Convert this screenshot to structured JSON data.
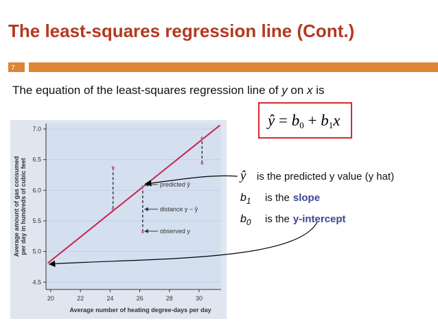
{
  "header": {
    "title": "The least-squares regression line (Cont.)",
    "slide_number": "7"
  },
  "sentence": [
    {
      "text": "The equation of the least-squares regression line of "
    },
    {
      "text": "y",
      "italic": true
    },
    {
      "text": " on "
    },
    {
      "text": "x",
      "italic": true
    },
    {
      "text": " is"
    }
  ],
  "equation": [
    {
      "text": "ŷ"
    },
    {
      "text": " = "
    },
    {
      "text": "b"
    },
    {
      "text": "0",
      "sub": true
    },
    {
      "text": " + "
    },
    {
      "text": "b"
    },
    {
      "text": "1",
      "sub": true
    },
    {
      "text": "x"
    }
  ],
  "legend": [
    {
      "symbol": "ŷ",
      "text": "is the predicted y value (y hat)"
    },
    {
      "symbol": "b",
      "sub": "1",
      "text": "is the",
      "highlight": "slope"
    },
    {
      "symbol": "b",
      "sub": "0",
      "text": "is the",
      "highlight": "y-intercept"
    }
  ],
  "figure": {
    "ylabel": [
      "Average amount of gas consumed",
      "per day in hundreds of cubic feet"
    ],
    "xlabel": "Average number of heating degree-days per day",
    "xlim": [
      19.68,
      31.48
    ],
    "ylim": [
      4.38,
      7.09
    ],
    "xticks": [
      20,
      22,
      24,
      26,
      28,
      30
    ],
    "yticks": [
      4.5,
      {
        "value": 5,
        "label": "5.0"
      },
      5.5,
      {
        "value": 6,
        "label": "6.0"
      },
      6.5,
      {
        "value": 7,
        "label": "7.0"
      }
    ],
    "line_x": [
      19.8,
      31.4
    ],
    "line_y": [
      4.81,
      7.06
    ],
    "line_color": "#c8254a",
    "x": [
      24.2,
      26.2,
      30.2
    ],
    "observed": [
      6.37,
      5.32,
      6.44
    ],
    "predicted": [
      5.69,
      6.06,
      6.85
    ],
    "annotations": [
      "predicted ŷ",
      "distance y − ŷ",
      "observed y"
    ]
  }
}
